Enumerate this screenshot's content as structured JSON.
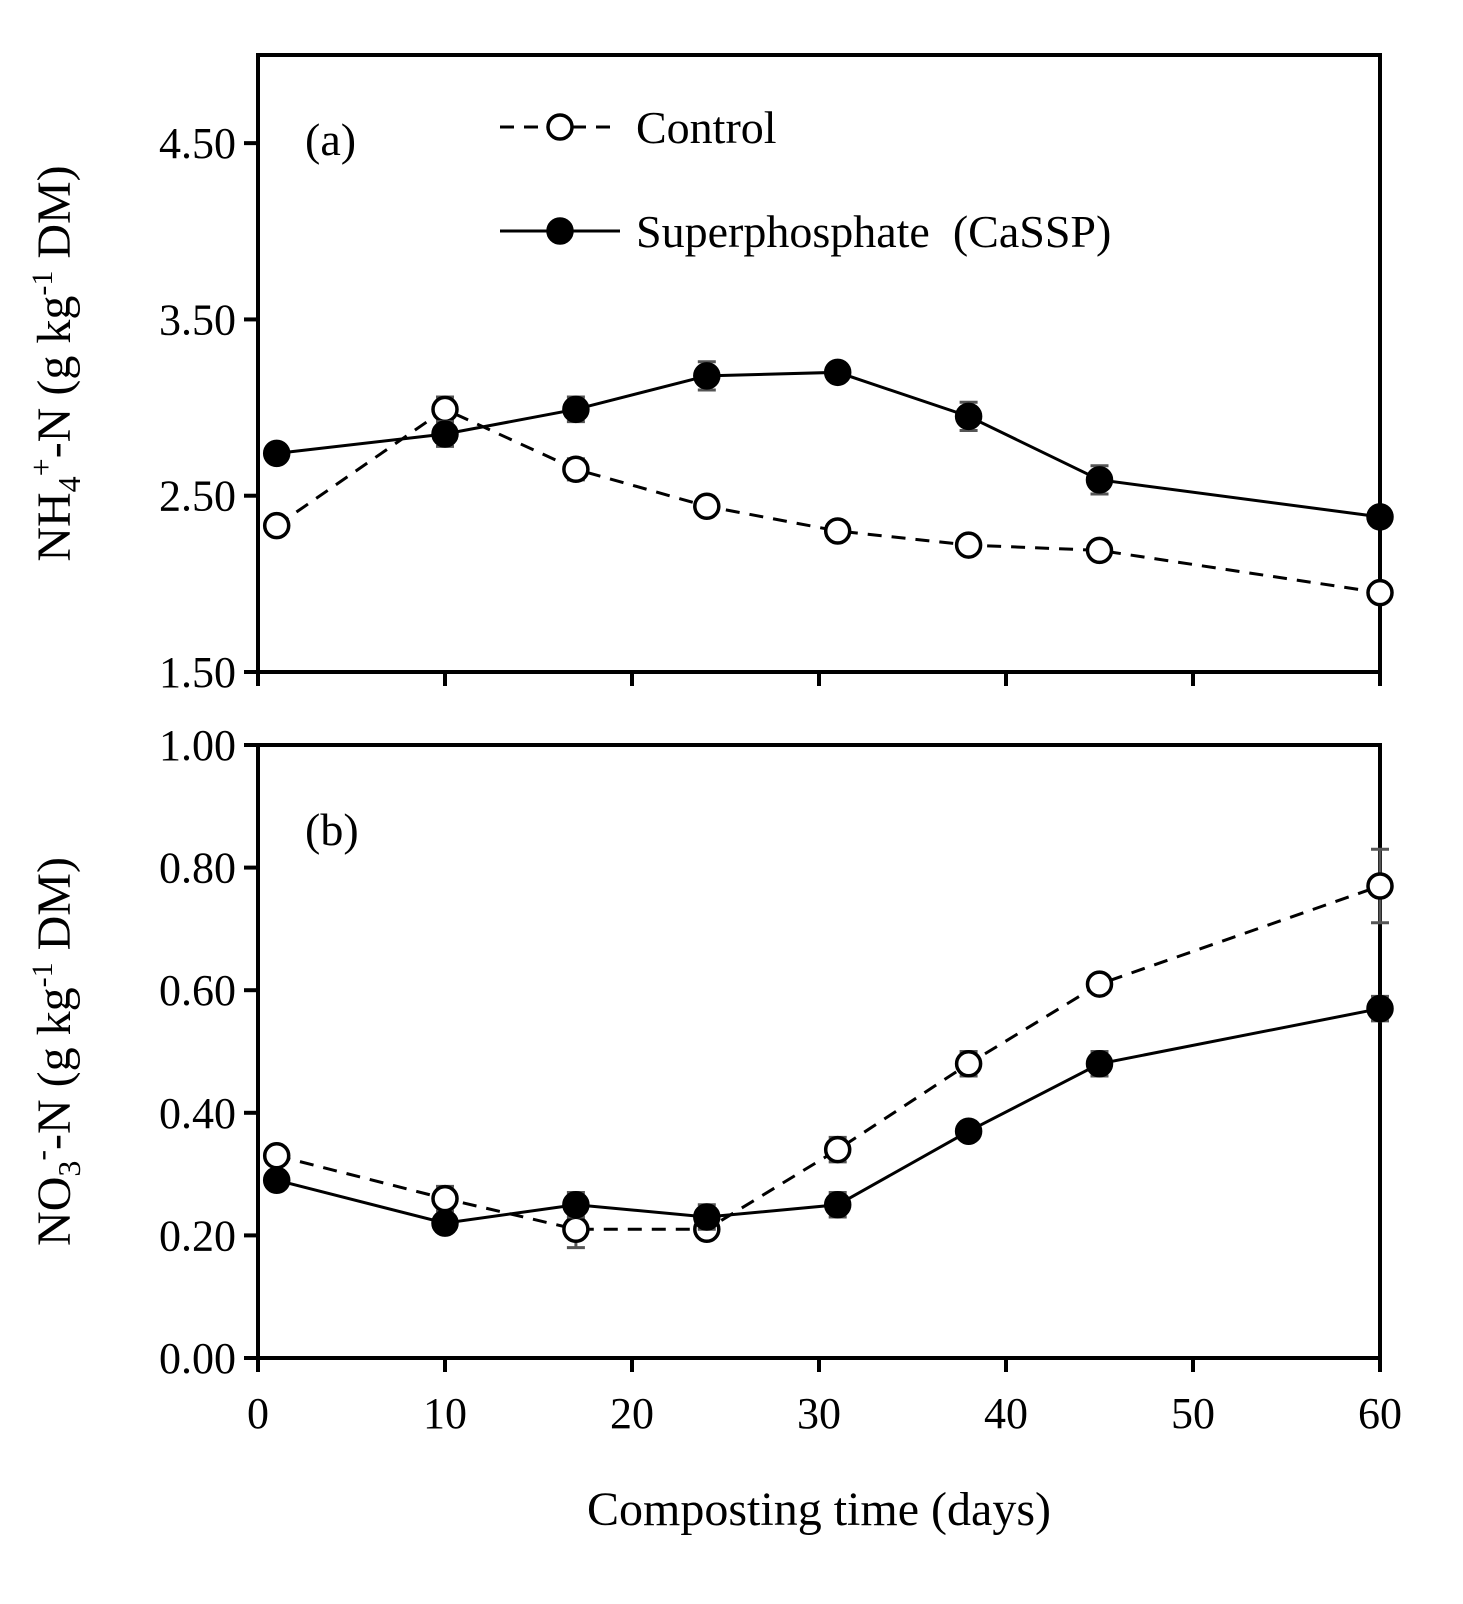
{
  "chart_data": [
    {
      "id": "a",
      "type": "line",
      "panel_label": "(a)",
      "ylabel_parts": [
        "NH",
        "4",
        "+",
        "-N (g kg",
        "-1",
        " DM)"
      ],
      "ylim": [
        1.5,
        5.0
      ],
      "yticks": [
        1.5,
        2.5,
        3.5,
        4.5
      ],
      "ytick_labels": [
        "1.50",
        "2.50",
        "3.50",
        "4.50"
      ],
      "xlim": [
        0,
        60
      ],
      "xticks": [
        0,
        10,
        20,
        30,
        40,
        50,
        60
      ],
      "x": [
        1,
        10,
        17,
        24,
        31,
        38,
        45,
        60
      ],
      "series": [
        {
          "name": "Control",
          "style": "dashed",
          "marker": "open-circle",
          "values": [
            2.33,
            2.99,
            2.65,
            2.44,
            2.3,
            2.22,
            2.19,
            1.95
          ],
          "errors": [
            0.05,
            0.07,
            0.06,
            0.04,
            0.04,
            0.03,
            0.05,
            0.03
          ]
        },
        {
          "name": "Superphosphate  (CaSSP)",
          "style": "solid",
          "marker": "filled-circle",
          "values": [
            2.74,
            2.85,
            2.99,
            3.18,
            3.2,
            2.95,
            2.59,
            2.38
          ],
          "errors": [
            0.05,
            0.07,
            0.07,
            0.08,
            0.04,
            0.08,
            0.08,
            0.04
          ]
        }
      ],
      "legend": {
        "position": "top",
        "entries": [
          "Control",
          "Superphosphate  (CaSSP)"
        ]
      }
    },
    {
      "id": "b",
      "type": "line",
      "panel_label": "(b)",
      "ylabel_parts": [
        "NO",
        "3",
        "-",
        "-N (g kg",
        "-1",
        " DM)"
      ],
      "ylim": [
        0.0,
        1.0
      ],
      "yticks": [
        0.0,
        0.2,
        0.4,
        0.6,
        0.8,
        1.0
      ],
      "ytick_labels": [
        "0.00",
        "0.20",
        "0.40",
        "0.60",
        "0.80",
        "1.00"
      ],
      "xlim": [
        0,
        60
      ],
      "xticks": [
        0,
        10,
        20,
        30,
        40,
        50,
        60
      ],
      "xtick_labels": [
        "0",
        "10",
        "20",
        "30",
        "40",
        "50",
        "60"
      ],
      "xlabel": "Composting time (days)",
      "x": [
        1,
        10,
        17,
        24,
        31,
        38,
        45,
        60
      ],
      "series": [
        {
          "name": "Control",
          "style": "dashed",
          "marker": "open-circle",
          "values": [
            0.33,
            0.26,
            0.21,
            0.21,
            0.34,
            0.48,
            0.61,
            0.77
          ],
          "errors": [
            0.01,
            0.02,
            0.03,
            0.01,
            0.02,
            0.02,
            0.01,
            0.06
          ]
        },
        {
          "name": "Superphosphate  (CaSSP)",
          "style": "solid",
          "marker": "filled-circle",
          "values": [
            0.29,
            0.22,
            0.25,
            0.23,
            0.25,
            0.37,
            0.48,
            0.57
          ],
          "errors": [
            0.01,
            0.01,
            0.02,
            0.02,
            0.02,
            0.01,
            0.02,
            0.02
          ]
        }
      ]
    }
  ]
}
